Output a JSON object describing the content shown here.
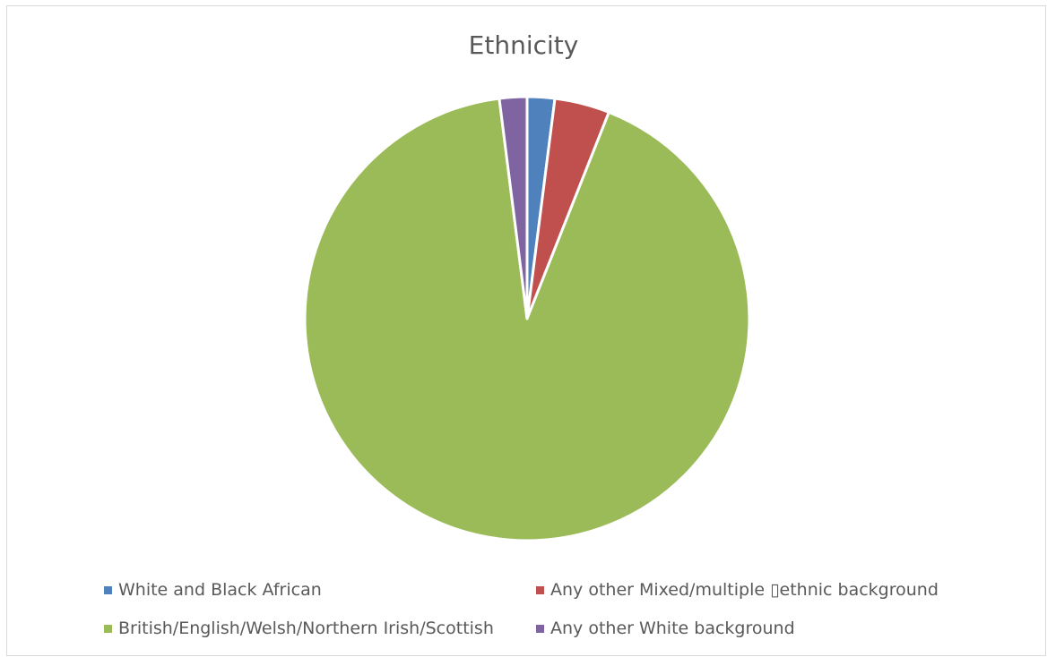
{
  "chart_data": {
    "type": "pie",
    "title": "Ethnicity",
    "categories": [
      "White and Black African",
      "Any other Mixed/multiple ▯ethnic background",
      "British/English/Welsh/Northern Irish/Scottish",
      "Any other White background"
    ],
    "values": [
      2,
      4,
      92,
      2
    ],
    "colors": [
      "#4f81bd",
      "#c0504d",
      "#9bbb59",
      "#8064a2"
    ],
    "legend_position": "bottom"
  }
}
